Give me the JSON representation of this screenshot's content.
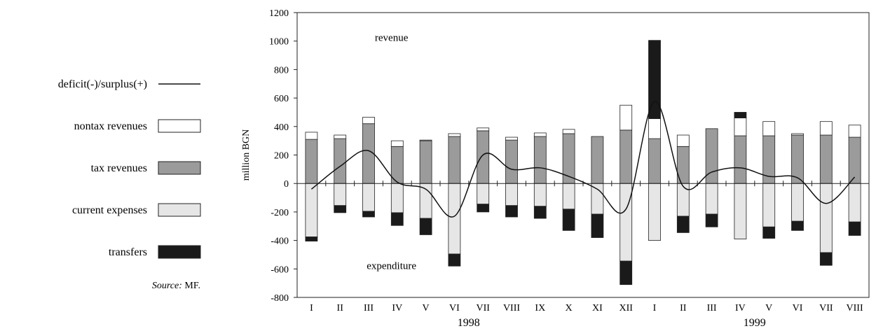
{
  "colors": {
    "nontax": "#ffffff",
    "tax": "#9b9b9b",
    "current": "#e6e6e6",
    "transfers": "#1a1a1a",
    "line": "#111111"
  },
  "legend": [
    {
      "key": "deficit",
      "label": "deficit(-)/surplus(+)",
      "kind": "line"
    },
    {
      "key": "nontax",
      "label": "nontax revenues",
      "kind": "box"
    },
    {
      "key": "tax",
      "label": "tax revenues",
      "kind": "box"
    },
    {
      "key": "current",
      "label": "current expenses",
      "kind": "box"
    },
    {
      "key": "transfers",
      "label": "transfers",
      "kind": "box"
    }
  ],
  "source": {
    "prefix": "Source:",
    "text": " MF."
  },
  "chart_data": {
    "type": "bar",
    "ylabel": "million BGN",
    "ylim": [
      -800,
      1200
    ],
    "yticks": [
      -800,
      -600,
      -400,
      -200,
      0,
      200,
      400,
      600,
      800,
      1000,
      1200
    ],
    "categories": [
      "I",
      "II",
      "III",
      "IV",
      "V",
      "VI",
      "VII",
      "VIII",
      "IX",
      "X",
      "XI",
      "XII",
      "I",
      "II",
      "III",
      "IV",
      "V",
      "VI",
      "VII",
      "VIII"
    ],
    "year_labels": [
      {
        "label": "1998",
        "category_index": 5.5
      },
      {
        "label": "1999",
        "category_index": 15.5
      }
    ],
    "annotations": [
      {
        "text": "revenue",
        "x_index": 2.8,
        "y": 1000
      },
      {
        "text": "expenditure",
        "x_index": 2.8,
        "y": -600
      }
    ],
    "series": [
      {
        "key": "tax",
        "name": "tax revenues",
        "stack": "revenue",
        "values": [
          310,
          315,
          420,
          260,
          300,
          330,
          370,
          305,
          330,
          350,
          330,
          375,
          315,
          260,
          385,
          335,
          335,
          340,
          340,
          325
        ]
      },
      {
        "key": "nontax",
        "name": "nontax revenues",
        "stack": "revenue",
        "values": [
          50,
          25,
          45,
          40,
          5,
          20,
          20,
          20,
          25,
          30,
          0,
          175,
          140,
          80,
          0,
          125,
          100,
          10,
          95,
          85
        ]
      },
      {
        "key": "transfers",
        "name": "transfers",
        "stack": "revenue",
        "values": [
          0,
          0,
          0,
          0,
          0,
          0,
          0,
          0,
          0,
          0,
          0,
          0,
          550,
          0,
          0,
          40,
          0,
          0,
          0,
          0
        ]
      },
      {
        "key": "current",
        "name": "current expenses",
        "stack": "expenditure",
        "values": [
          -375,
          -155,
          -195,
          -205,
          -245,
          -495,
          -145,
          -155,
          -160,
          -180,
          -215,
          -545,
          -400,
          -230,
          -215,
          -390,
          -305,
          -265,
          -485,
          -270
        ]
      },
      {
        "key": "transfers_exp",
        "name": "transfers",
        "stack": "expenditure",
        "values": [
          -30,
          -50,
          -40,
          -90,
          -115,
          -85,
          -55,
          -80,
          -85,
          -150,
          -165,
          -165,
          0,
          -115,
          -90,
          0,
          -80,
          -65,
          -90,
          -95
        ]
      },
      {
        "key": "deficit",
        "name": "deficit(-)/surplus(+)",
        "kind": "line",
        "values": [
          -40,
          120,
          230,
          10,
          -40,
          -230,
          200,
          100,
          110,
          50,
          -40,
          -180,
          575,
          -20,
          80,
          110,
          50,
          40,
          -140,
          45
        ]
      }
    ]
  }
}
